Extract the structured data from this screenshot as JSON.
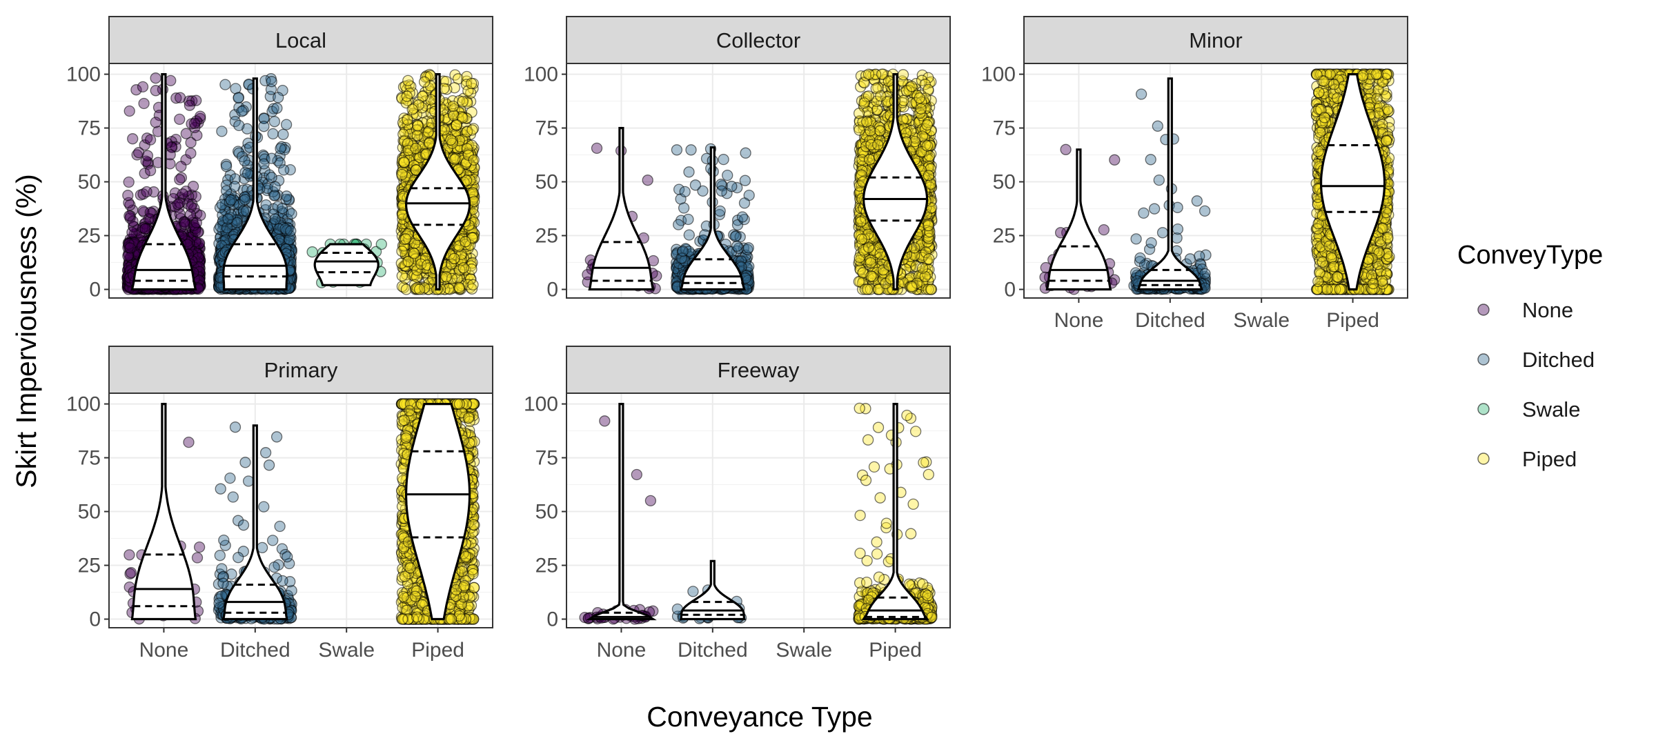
{
  "chart_data": {
    "type": "violin-jitter",
    "facet_variable": "road class",
    "ylabel": "Skirt Imperviousness (%)",
    "xlabel": "Conveyance Type",
    "ylim": [
      -4,
      105
    ],
    "y_ticks": [
      0,
      25,
      50,
      75,
      100
    ],
    "categories": [
      "None",
      "Ditched",
      "Swale",
      "Piped"
    ],
    "legend": {
      "title": "ConveyType",
      "position": "right",
      "entries": [
        {
          "label": "None",
          "color": "#440154"
        },
        {
          "label": "Ditched",
          "color": "#31688E"
        },
        {
          "label": "Swale",
          "color": "#35B779"
        },
        {
          "label": "Piped",
          "color": "#FDE725"
        }
      ]
    },
    "quantile_lines": "25th (dashed), 50th (solid), 75th (dashed)",
    "panels": [
      {
        "title": "Local",
        "groups": [
          {
            "type": "None",
            "count": "very many",
            "min": 0,
            "max": 100,
            "q25": 4,
            "median": 9,
            "q75": 21
          },
          {
            "type": "Ditched",
            "count": "very many",
            "min": 0,
            "max": 98,
            "q25": 6,
            "median": 11,
            "q75": 21
          },
          {
            "type": "Swale",
            "count": "few",
            "min": 2,
            "max": 21,
            "q25": 8,
            "median": 13,
            "q75": 17
          },
          {
            "type": "Piped",
            "count": "very many",
            "min": 0,
            "max": 100,
            "q25": 30,
            "median": 40,
            "q75": 47
          }
        ]
      },
      {
        "title": "Collector",
        "groups": [
          {
            "type": "None",
            "count": "few",
            "min": 0,
            "max": 75,
            "q25": 4,
            "median": 10,
            "q75": 22
          },
          {
            "type": "Ditched",
            "count": "many",
            "min": 0,
            "max": 66,
            "q25": 3,
            "median": 6,
            "q75": 14
          },
          {
            "type": "Swale",
            "count": "none"
          },
          {
            "type": "Piped",
            "count": "very many",
            "min": 0,
            "max": 100,
            "q25": 32,
            "median": 42,
            "q75": 52
          }
        ]
      },
      {
        "title": "Minor",
        "groups": [
          {
            "type": "None",
            "count": "few",
            "min": 0,
            "max": 65,
            "q25": 4,
            "median": 9,
            "q75": 20
          },
          {
            "type": "Ditched",
            "count": "moderate",
            "min": 0,
            "max": 98,
            "q25": 2,
            "median": 4,
            "q75": 9
          },
          {
            "type": "Swale",
            "count": "none"
          },
          {
            "type": "Piped",
            "count": "very many",
            "min": 0,
            "max": 100,
            "q25": 36,
            "median": 48,
            "q75": 67
          }
        ]
      },
      {
        "title": "Primary",
        "groups": [
          {
            "type": "None",
            "count": "few",
            "min": 0,
            "max": 100,
            "q25": 6,
            "median": 14,
            "q75": 30
          },
          {
            "type": "Ditched",
            "count": "moderate",
            "min": 0,
            "max": 90,
            "q25": 3,
            "median": 8,
            "q75": 16
          },
          {
            "type": "Swale",
            "count": "none"
          },
          {
            "type": "Piped",
            "count": "very many",
            "min": 0,
            "max": 100,
            "q25": 38,
            "median": 58,
            "q75": 78
          }
        ]
      },
      {
        "title": "Freeway",
        "groups": [
          {
            "type": "None",
            "count": "few",
            "min": 0,
            "max": 100,
            "q25": 0,
            "median": 1,
            "q75": 3
          },
          {
            "type": "Ditched",
            "count": "few",
            "min": 0,
            "max": 27,
            "q25": 2,
            "median": 4,
            "q75": 8
          },
          {
            "type": "Swale",
            "count": "none"
          },
          {
            "type": "Piped",
            "count": "many",
            "min": 0,
            "max": 100,
            "q25": 1,
            "median": 4,
            "q75": 10
          }
        ]
      }
    ]
  }
}
